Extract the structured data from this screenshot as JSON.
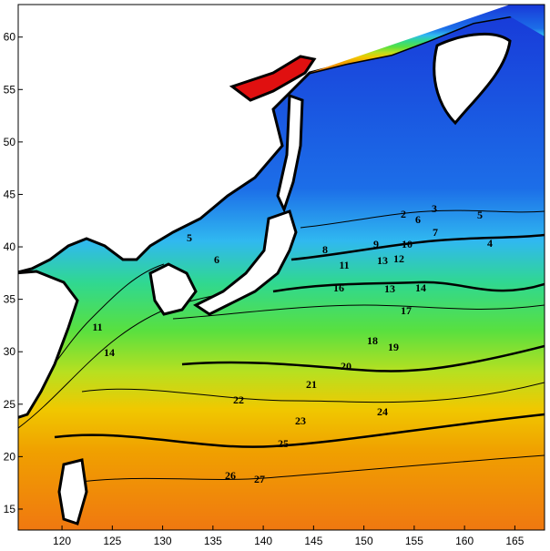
{
  "map": {
    "x_axis": {
      "ticks": [
        120,
        125,
        130,
        135,
        140,
        145,
        150,
        155,
        160,
        165
      ]
    },
    "y_axis": {
      "ticks": [
        15,
        20,
        25,
        30,
        35,
        40,
        45,
        50,
        55,
        60
      ]
    },
    "contour_labels": [
      "2",
      "6",
      "3",
      "5",
      "7",
      "4",
      "8",
      "9",
      "10",
      "11",
      "13",
      "12",
      "13",
      "14",
      "16",
      "17",
      "18",
      "19",
      "20",
      "21",
      "22",
      "23",
      "24",
      "25",
      "26",
      "27",
      "5",
      "6",
      "11",
      "14"
    ]
  }
}
